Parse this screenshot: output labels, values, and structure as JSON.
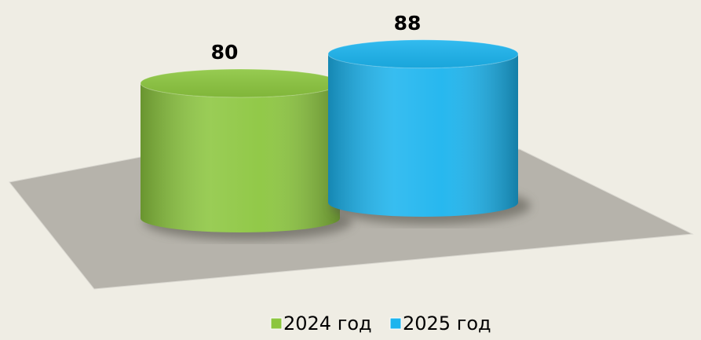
{
  "chart_data": {
    "type": "bar",
    "series": [
      {
        "name": "2024 год",
        "color": "#8cc63f",
        "values": [
          80
        ]
      },
      {
        "name": "2025 год",
        "color": "#1cb4ee",
        "values": [
          88
        ]
      }
    ],
    "ylim": [
      0,
      100
    ]
  }
}
